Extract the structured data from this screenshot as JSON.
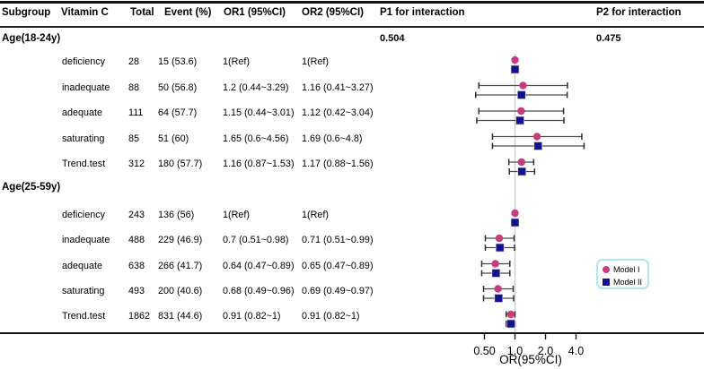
{
  "chart_data": {
    "type": "scatter",
    "subtype": "forest_plot",
    "xlabel": "OR(95%CI)",
    "x_scale": "log2",
    "x_ticks": [
      0.5,
      1,
      2,
      4
    ],
    "x_tick_labels": [
      "0.50",
      "1.0",
      "2.0",
      "4.0"
    ],
    "reference_value": 1,
    "grid": "off",
    "legend_position": "right-middle",
    "table_headers": [
      "Subgroup",
      "Vitamin C",
      "Total",
      "Event (%)",
      "OR1 (95%CI)",
      "OR2 (95%CI)",
      "P1 for interaction",
      "P2 for interaction"
    ],
    "legend": {
      "items": [
        {
          "label": "Model I",
          "marker": "circle",
          "color": "#c63d7f"
        },
        {
          "label": "Model II",
          "marker": "square",
          "color": "#12128e"
        }
      ]
    },
    "colors": {
      "model1": "#c63d7f",
      "model2": "#12128e",
      "ci_line": "#4a4a4a",
      "reference_line": "#c9c9c9",
      "axis": "#141414",
      "legend_border": "#b0e6f4"
    },
    "groups": [
      {
        "label": "Age(18-24y)",
        "p1_for_interaction": "0.504",
        "p2_for_interaction": "0.475",
        "rows": [
          {
            "vitamin_c": "deficiency",
            "total": "28",
            "event_pct": "15 (53.6)",
            "or1_text": "1(Ref)",
            "or2_text": "1(Ref)",
            "model1": {
              "or": 1
            },
            "model2": {
              "or": 1
            }
          },
          {
            "vitamin_c": "inadequate",
            "total": "88",
            "event_pct": "50 (56.8)",
            "or1_text": "1.2 (0.44~3.29)",
            "or2_text": "1.16 (0.41~3.27)",
            "model1": {
              "or": 1.2,
              "ci_low": 0.44,
              "ci_high": 3.29
            },
            "model2": {
              "or": 1.16,
              "ci_low": 0.41,
              "ci_high": 3.27
            }
          },
          {
            "vitamin_c": "adequate",
            "total": "111",
            "event_pct": "64 (57.7)",
            "or1_text": "1.15 (0.44~3.01)",
            "or2_text": "1.12 (0.42~3.04)",
            "model1": {
              "or": 1.15,
              "ci_low": 0.44,
              "ci_high": 3.01
            },
            "model2": {
              "or": 1.12,
              "ci_low": 0.42,
              "ci_high": 3.04
            }
          },
          {
            "vitamin_c": "saturating",
            "total": "85",
            "event_pct": "51 (60)",
            "or1_text": "1.65 (0.6~4.56)",
            "or2_text": "1.69 (0.6~4.8)",
            "model1": {
              "or": 1.65,
              "ci_low": 0.6,
              "ci_high": 4.56
            },
            "model2": {
              "or": 1.69,
              "ci_low": 0.6,
              "ci_high": 4.8
            }
          },
          {
            "vitamin_c": "Trend.test",
            "total": "312",
            "event_pct": "180 (57.7)",
            "or1_text": "1.16 (0.87~1.53)",
            "or2_text": "1.17 (0.88~1.56)",
            "model1": {
              "or": 1.16,
              "ci_low": 0.87,
              "ci_high": 1.53
            },
            "model2": {
              "or": 1.17,
              "ci_low": 0.88,
              "ci_high": 1.56
            }
          }
        ]
      },
      {
        "label": "Age(25-59y)",
        "rows": [
          {
            "vitamin_c": "deficiency",
            "total": "243",
            "event_pct": "136 (56)",
            "or1_text": "1(Ref)",
            "or2_text": "1(Ref)",
            "model1": {
              "or": 1
            },
            "model2": {
              "or": 1
            }
          },
          {
            "vitamin_c": "inadequate",
            "total": "488",
            "event_pct": "229 (46.9)",
            "or1_text": "0.7 (0.51~0.98)",
            "or2_text": "0.71 (0.51~0.99)",
            "model1": {
              "or": 0.7,
              "ci_low": 0.51,
              "ci_high": 0.98
            },
            "model2": {
              "or": 0.71,
              "ci_low": 0.51,
              "ci_high": 0.99
            }
          },
          {
            "vitamin_c": "adequate",
            "total": "638",
            "event_pct": "266 (41.7)",
            "or1_text": "0.64 (0.47~0.89)",
            "or2_text": "0.65 (0.47~0.89)",
            "model1": {
              "or": 0.64,
              "ci_low": 0.47,
              "ci_high": 0.89
            },
            "model2": {
              "or": 0.65,
              "ci_low": 0.47,
              "ci_high": 0.89
            }
          },
          {
            "vitamin_c": "saturating",
            "total": "493",
            "event_pct": "200 (40.6)",
            "or1_text": "0.68 (0.49~0.96)",
            "or2_text": "0.69 (0.49~0.97)",
            "model1": {
              "or": 0.68,
              "ci_low": 0.49,
              "ci_high": 0.96
            },
            "model2": {
              "or": 0.69,
              "ci_low": 0.49,
              "ci_high": 0.97
            }
          },
          {
            "vitamin_c": "Trend.test",
            "total": "1862",
            "event_pct": "831 (44.6)",
            "or1_text": "0.91 (0.82~1)",
            "or2_text": "0.91 (0.82~1)",
            "model1": {
              "or": 0.91,
              "ci_low": 0.82,
              "ci_high": 1
            },
            "model2": {
              "or": 0.91,
              "ci_low": 0.82,
              "ci_high": 1
            }
          }
        ]
      }
    ]
  }
}
